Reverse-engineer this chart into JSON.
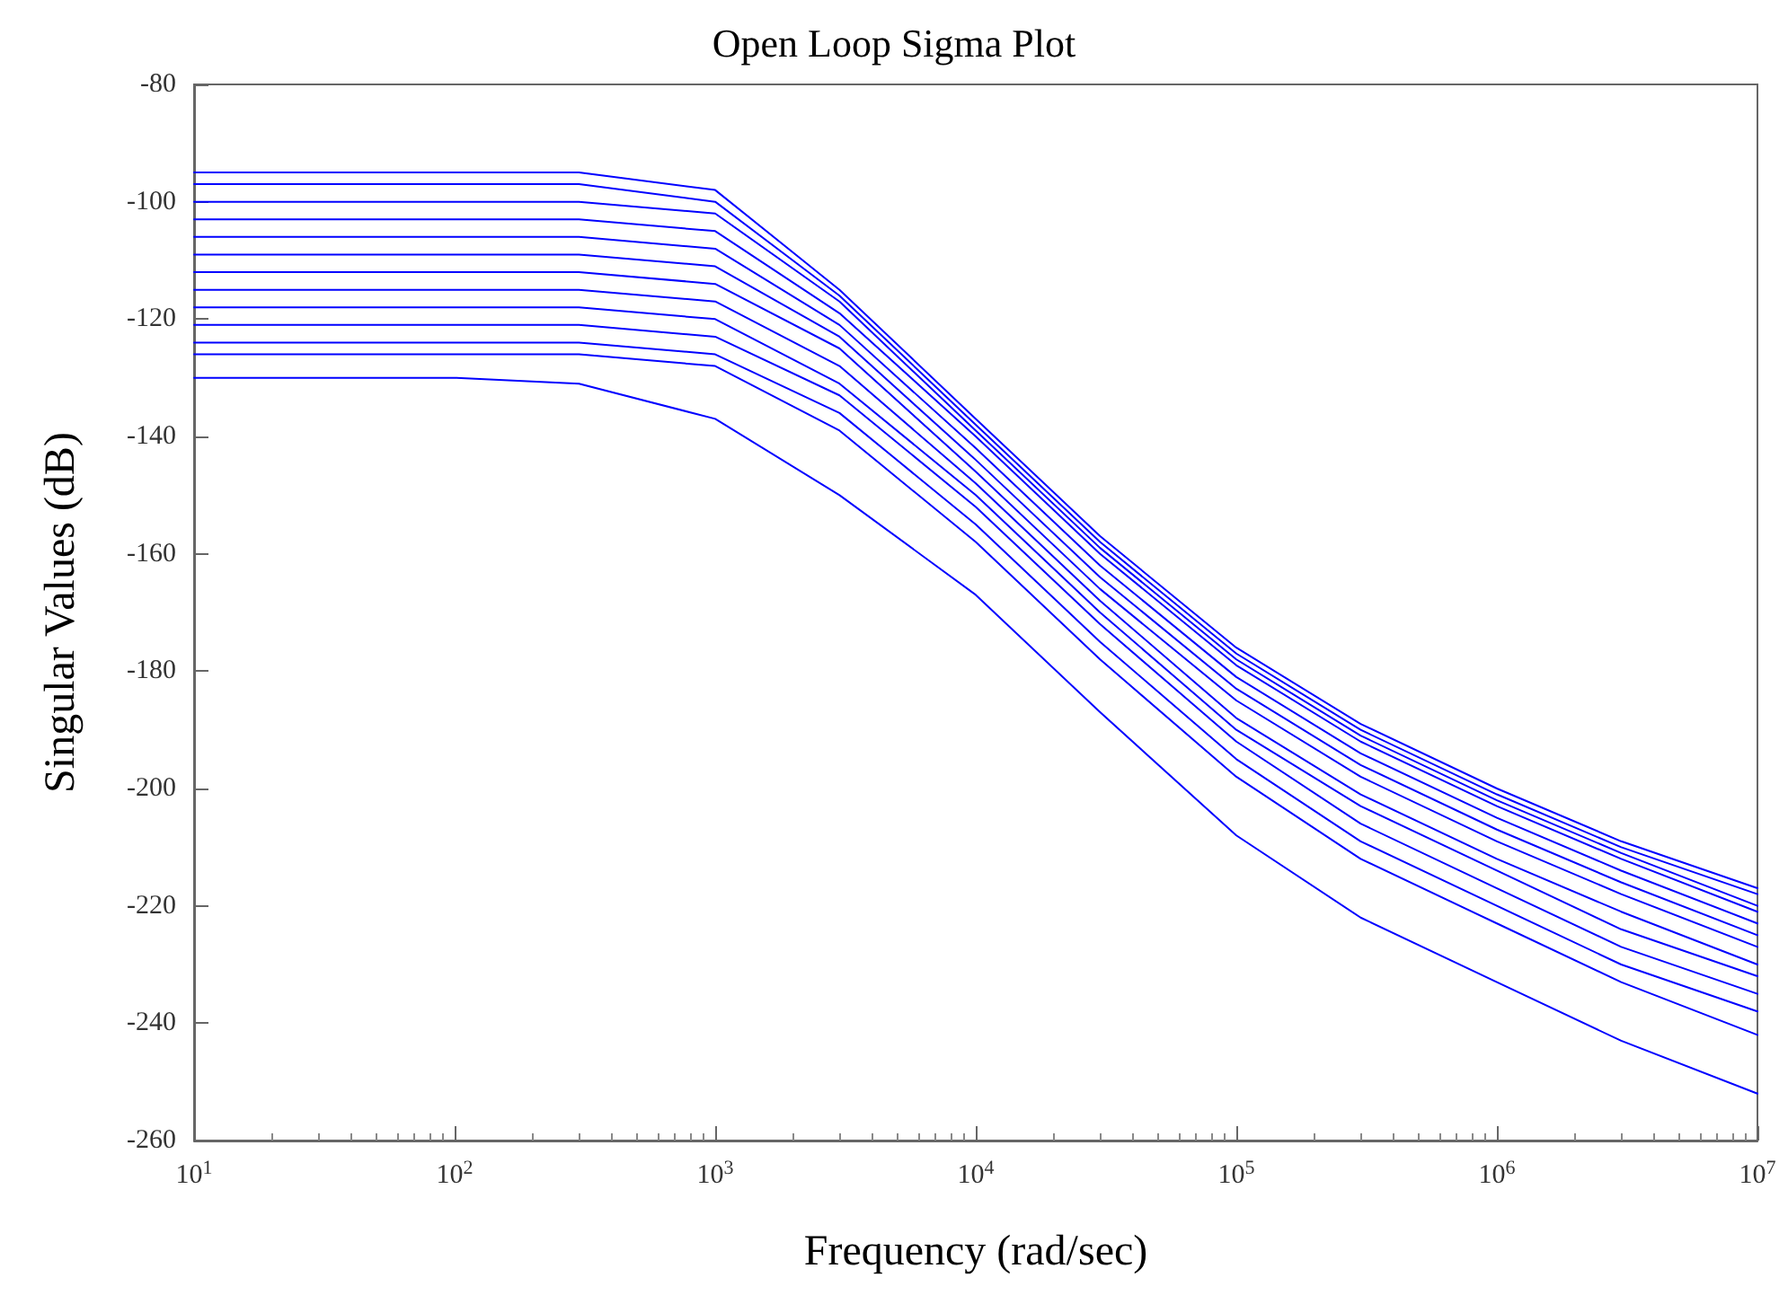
{
  "chart_data": {
    "type": "line",
    "title": "Open Loop Sigma Plot",
    "xlabel": "Frequency (rad/sec)",
    "ylabel": "Singular Values (dB)",
    "x": [
      10,
      100,
      300,
      1000,
      3000,
      10000,
      30000,
      100000,
      300000,
      1000000,
      3000000,
      10000000
    ],
    "log": "x",
    "grid": false,
    "marker": "none",
    "line_style": "solid",
    "xlim": [
      10,
      10000000
    ],
    "xticks": [
      {
        "value": 10,
        "label": "10$^{1}$"
      },
      {
        "value": 100,
        "label": "10$^{2}$"
      },
      {
        "value": 1000,
        "label": "10$^{3}$"
      },
      {
        "value": 10000,
        "label": "10$^{4}$"
      },
      {
        "value": 100000,
        "label": "10$^{5}$"
      },
      {
        "value": 1000000,
        "label": "10$^{6}$"
      },
      {
        "value": 10000000,
        "label": "10$^{7}$"
      }
    ],
    "ylim": [
      -260,
      -80
    ],
    "yticks": [
      -260,
      -240,
      -220,
      -200,
      -180,
      -160,
      -140,
      -120,
      -100,
      -80
    ],
    "series": [
      {
        "color": "#0000ff",
        "values": [
          -95,
          -95,
          -95,
          -98,
          -115,
          -137,
          -157,
          -176,
          -189,
          -200,
          -209,
          -217
        ]
      },
      {
        "color": "#0000ff",
        "values": [
          -97,
          -97,
          -97,
          -100,
          -116,
          -138,
          -158,
          -177,
          -190,
          -201,
          -210,
          -218
        ]
      },
      {
        "color": "#0000ff",
        "values": [
          -100,
          -100,
          -100,
          -102,
          -117,
          -139,
          -159,
          -178,
          -191,
          -202,
          -211,
          -220
        ]
      },
      {
        "color": "#0000ff",
        "values": [
          -103,
          -103,
          -103,
          -105,
          -119,
          -140,
          -160,
          -179,
          -192,
          -203,
          -212,
          -221
        ]
      },
      {
        "color": "#0000ff",
        "values": [
          -106,
          -106,
          -106,
          -108,
          -121,
          -142,
          -162,
          -181,
          -194,
          -205,
          -214,
          -223
        ]
      },
      {
        "color": "#0000ff",
        "values": [
          -109,
          -109,
          -109,
          -111,
          -123,
          -144,
          -164,
          -183,
          -196,
          -207,
          -216,
          -225
        ]
      },
      {
        "color": "#0000ff",
        "values": [
          -112,
          -112,
          -112,
          -114,
          -125,
          -146,
          -166,
          -185,
          -198,
          -209,
          -218,
          -227
        ]
      },
      {
        "color": "#0000ff",
        "values": [
          -115,
          -115,
          -115,
          -117,
          -128,
          -148,
          -168,
          -188,
          -201,
          -212,
          -221,
          -230
        ]
      },
      {
        "color": "#0000ff",
        "values": [
          -118,
          -118,
          -118,
          -120,
          -131,
          -150,
          -170,
          -190,
          -203,
          -214,
          -224,
          -232
        ]
      },
      {
        "color": "#0000ff",
        "values": [
          -121,
          -121,
          -121,
          -123,
          -133,
          -152,
          -172,
          -192,
          -206,
          -217,
          -227,
          -235
        ]
      },
      {
        "color": "#0000ff",
        "values": [
          -124,
          -124,
          -124,
          -126,
          -136,
          -155,
          -175,
          -195,
          -209,
          -220,
          -230,
          -238
        ]
      },
      {
        "color": "#0000ff",
        "values": [
          -126,
          -126,
          -126,
          -128,
          -139,
          -158,
          -178,
          -198,
          -212,
          -223,
          -233,
          -242
        ]
      },
      {
        "color": "#0000ff",
        "values": [
          -130,
          -130,
          -131,
          -137,
          -150,
          -167,
          -187,
          -208,
          -222,
          -233,
          -243,
          -252
        ]
      }
    ]
  }
}
